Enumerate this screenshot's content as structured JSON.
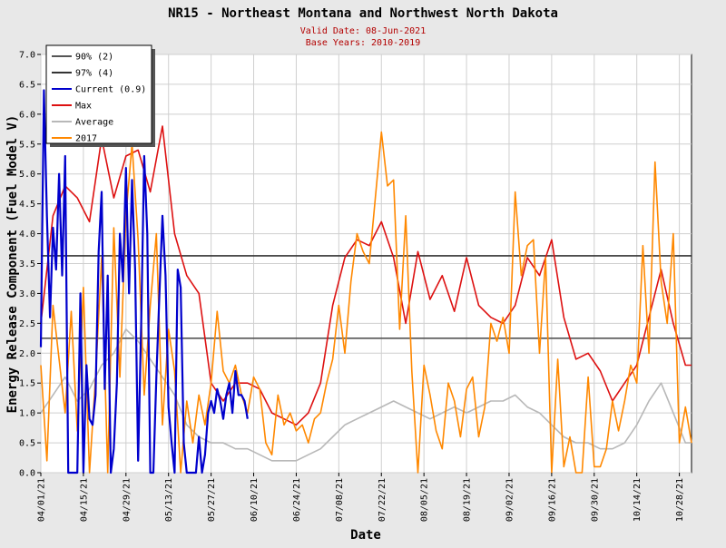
{
  "chart_data": {
    "type": "line",
    "title": "NR15 - Northeast Montana and Northwest North Dakota",
    "subtitle_valid": "Valid Date: 08-Jun-2021",
    "subtitle_base": "Base Years: 2010-2019",
    "xlabel": "Date",
    "ylabel": "Energy Release Component (Fuel Model V)",
    "ylim": [
      0,
      7
    ],
    "yticks": [
      "0.0",
      "0.5",
      "1.0",
      "1.5",
      "2.0",
      "2.5",
      "3.0",
      "3.5",
      "4.0",
      "4.5",
      "5.0",
      "5.5",
      "6.0",
      "6.5",
      "7.0"
    ],
    "x_start": "2021-04-01",
    "x_end": "2021-11-01",
    "xticks": [
      {
        "date": "2021-04-01",
        "label": "04/01/21"
      },
      {
        "date": "2021-04-15",
        "label": "04/15/21"
      },
      {
        "date": "2021-04-29",
        "label": "04/29/21"
      },
      {
        "date": "2021-05-13",
        "label": "05/13/21"
      },
      {
        "date": "2021-05-27",
        "label": "05/27/21"
      },
      {
        "date": "2021-06-10",
        "label": "06/10/21"
      },
      {
        "date": "2021-06-24",
        "label": "06/24/21"
      },
      {
        "date": "2021-07-08",
        "label": "07/08/21"
      },
      {
        "date": "2021-07-22",
        "label": "07/22/21"
      },
      {
        "date": "2021-08-05",
        "label": "08/05/21"
      },
      {
        "date": "2021-08-19",
        "label": "08/19/21"
      },
      {
        "date": "2021-09-02",
        "label": "09/02/21"
      },
      {
        "date": "2021-09-16",
        "label": "09/16/21"
      },
      {
        "date": "2021-09-30",
        "label": "09/30/21"
      },
      {
        "date": "2021-10-14",
        "label": "10/14/21"
      },
      {
        "date": "2021-10-28",
        "label": "10/28/21"
      }
    ],
    "grid": true,
    "legend_position": "top-left",
    "reference_lines": [
      {
        "name": "90% (2)",
        "value": 2.25,
        "color": "#555555"
      },
      {
        "name": "97% (4)",
        "value": 3.63,
        "color": "#333333"
      }
    ],
    "series": [
      {
        "name": "Current (0.9)",
        "color": "#0000cc",
        "x": [
          "2021-04-01",
          "2021-04-02",
          "2021-04-03",
          "2021-04-04",
          "2021-04-05",
          "2021-04-06",
          "2021-04-07",
          "2021-04-08",
          "2021-04-09",
          "2021-04-10",
          "2021-04-11",
          "2021-04-12",
          "2021-04-13",
          "2021-04-14",
          "2021-04-15",
          "2021-04-16",
          "2021-04-17",
          "2021-04-18",
          "2021-04-19",
          "2021-04-20",
          "2021-04-21",
          "2021-04-22",
          "2021-04-23",
          "2021-04-24",
          "2021-04-25",
          "2021-04-26",
          "2021-04-27",
          "2021-04-28",
          "2021-04-29",
          "2021-04-30",
          "2021-05-01",
          "2021-05-02",
          "2021-05-03",
          "2021-05-04",
          "2021-05-05",
          "2021-05-06",
          "2021-05-07",
          "2021-05-08",
          "2021-05-09",
          "2021-05-10",
          "2021-05-11",
          "2021-05-12",
          "2021-05-13",
          "2021-05-14",
          "2021-05-15",
          "2021-05-16",
          "2021-05-17",
          "2021-05-18",
          "2021-05-19",
          "2021-05-20",
          "2021-05-21",
          "2021-05-22",
          "2021-05-23",
          "2021-05-24",
          "2021-05-25",
          "2021-05-26",
          "2021-05-27",
          "2021-05-28",
          "2021-05-29",
          "2021-05-30",
          "2021-05-31",
          "2021-06-01",
          "2021-06-02",
          "2021-06-03",
          "2021-06-04",
          "2021-06-05",
          "2021-06-06",
          "2021-06-07",
          "2021-06-08"
        ],
        "values": [
          2.1,
          6.4,
          4.3,
          2.6,
          4.1,
          3.4,
          5.0,
          3.3,
          5.3,
          0.0,
          0.0,
          0.0,
          0.0,
          3.0,
          0.0,
          1.8,
          0.9,
          0.8,
          1.3,
          3.7,
          4.7,
          1.4,
          3.3,
          0.0,
          0.4,
          1.5,
          4.0,
          3.2,
          5.1,
          3.0,
          4.9,
          3.4,
          0.2,
          2.5,
          5.3,
          4.0,
          0.0,
          0.0,
          1.6,
          3.0,
          4.3,
          3.3,
          1.1,
          0.5,
          0.0,
          3.4,
          3.1,
          0.5,
          0.0,
          0.0,
          0.0,
          0.0,
          0.6,
          0.0,
          0.3,
          1.0,
          1.2,
          1.0,
          1.4,
          1.2,
          0.9,
          1.3,
          1.5,
          1.0,
          1.7,
          1.3,
          1.3,
          1.2,
          0.9
        ]
      },
      {
        "name": "Max",
        "color": "#dd1111",
        "x": [
          "2021-04-01",
          "2021-04-05",
          "2021-04-09",
          "2021-04-13",
          "2021-04-17",
          "2021-04-21",
          "2021-04-25",
          "2021-04-29",
          "2021-05-03",
          "2021-05-07",
          "2021-05-11",
          "2021-05-15",
          "2021-05-19",
          "2021-05-23",
          "2021-05-27",
          "2021-05-31",
          "2021-06-04",
          "2021-06-08",
          "2021-06-12",
          "2021-06-16",
          "2021-06-20",
          "2021-06-24",
          "2021-06-28",
          "2021-07-02",
          "2021-07-06",
          "2021-07-10",
          "2021-07-14",
          "2021-07-18",
          "2021-07-22",
          "2021-07-26",
          "2021-07-30",
          "2021-08-03",
          "2021-08-07",
          "2021-08-11",
          "2021-08-15",
          "2021-08-19",
          "2021-08-23",
          "2021-08-27",
          "2021-08-31",
          "2021-09-04",
          "2021-09-08",
          "2021-09-12",
          "2021-09-16",
          "2021-09-20",
          "2021-09-24",
          "2021-09-28",
          "2021-10-02",
          "2021-10-06",
          "2021-10-10",
          "2021-10-14",
          "2021-10-18",
          "2021-10-22",
          "2021-10-26",
          "2021-10-30",
          "2021-11-01"
        ],
        "values": [
          2.5,
          4.3,
          4.8,
          4.6,
          4.2,
          5.6,
          4.6,
          5.3,
          5.4,
          4.7,
          5.8,
          4.0,
          3.3,
          3.0,
          1.5,
          1.2,
          1.5,
          1.5,
          1.4,
          1.0,
          0.9,
          0.8,
          1.0,
          1.5,
          2.8,
          3.6,
          3.9,
          3.8,
          4.2,
          3.6,
          2.5,
          3.7,
          2.9,
          3.3,
          2.7,
          3.6,
          2.8,
          2.6,
          2.5,
          2.8,
          3.6,
          3.3,
          3.9,
          2.6,
          1.9,
          2.0,
          1.7,
          1.2,
          1.5,
          1.8,
          2.6,
          3.4,
          2.5,
          1.8,
          1.8
        ]
      },
      {
        "name": "Average",
        "color": "#b8b8b8",
        "x": [
          "2021-04-01",
          "2021-04-05",
          "2021-04-09",
          "2021-04-13",
          "2021-04-17",
          "2021-04-21",
          "2021-04-25",
          "2021-04-29",
          "2021-05-03",
          "2021-05-07",
          "2021-05-11",
          "2021-05-15",
          "2021-05-19",
          "2021-05-23",
          "2021-05-27",
          "2021-05-31",
          "2021-06-04",
          "2021-06-08",
          "2021-06-12",
          "2021-06-16",
          "2021-06-20",
          "2021-06-24",
          "2021-06-28",
          "2021-07-02",
          "2021-07-06",
          "2021-07-10",
          "2021-07-14",
          "2021-07-18",
          "2021-07-22",
          "2021-07-26",
          "2021-07-30",
          "2021-08-03",
          "2021-08-07",
          "2021-08-11",
          "2021-08-15",
          "2021-08-19",
          "2021-08-23",
          "2021-08-27",
          "2021-08-31",
          "2021-09-04",
          "2021-09-08",
          "2021-09-12",
          "2021-09-16",
          "2021-09-20",
          "2021-09-24",
          "2021-09-28",
          "2021-10-02",
          "2021-10-06",
          "2021-10-10",
          "2021-10-14",
          "2021-10-18",
          "2021-10-22",
          "2021-10-26",
          "2021-10-30",
          "2021-11-01"
        ],
        "values": [
          1.0,
          1.3,
          1.6,
          1.2,
          1.4,
          1.8,
          2.0,
          2.4,
          2.2,
          1.9,
          1.6,
          1.3,
          0.8,
          0.6,
          0.5,
          0.5,
          0.4,
          0.4,
          0.3,
          0.2,
          0.2,
          0.2,
          0.3,
          0.4,
          0.6,
          0.8,
          0.9,
          1.0,
          1.1,
          1.2,
          1.1,
          1.0,
          0.9,
          1.0,
          1.1,
          1.0,
          1.1,
          1.2,
          1.2,
          1.3,
          1.1,
          1.0,
          0.8,
          0.6,
          0.5,
          0.5,
          0.4,
          0.4,
          0.5,
          0.8,
          1.2,
          1.5,
          1.0,
          0.5,
          0.5
        ]
      },
      {
        "name": "2017",
        "color": "#ff8800",
        "x": [
          "2021-04-01",
          "2021-04-03",
          "2021-04-05",
          "2021-04-07",
          "2021-04-09",
          "2021-04-11",
          "2021-04-13",
          "2021-04-15",
          "2021-04-17",
          "2021-04-19",
          "2021-04-21",
          "2021-04-23",
          "2021-04-25",
          "2021-04-27",
          "2021-04-29",
          "2021-05-01",
          "2021-05-03",
          "2021-05-05",
          "2021-05-07",
          "2021-05-09",
          "2021-05-11",
          "2021-05-13",
          "2021-05-15",
          "2021-05-17",
          "2021-05-19",
          "2021-05-21",
          "2021-05-23",
          "2021-05-25",
          "2021-05-27",
          "2021-05-29",
          "2021-05-31",
          "2021-06-02",
          "2021-06-04",
          "2021-06-06",
          "2021-06-08",
          "2021-06-10",
          "2021-06-12",
          "2021-06-14",
          "2021-06-16",
          "2021-06-18",
          "2021-06-20",
          "2021-06-22",
          "2021-06-24",
          "2021-06-26",
          "2021-06-28",
          "2021-06-30",
          "2021-07-02",
          "2021-07-04",
          "2021-07-06",
          "2021-07-08",
          "2021-07-10",
          "2021-07-12",
          "2021-07-14",
          "2021-07-16",
          "2021-07-18",
          "2021-07-20",
          "2021-07-22",
          "2021-07-24",
          "2021-07-26",
          "2021-07-28",
          "2021-07-30",
          "2021-08-01",
          "2021-08-03",
          "2021-08-05",
          "2021-08-07",
          "2021-08-09",
          "2021-08-11",
          "2021-08-13",
          "2021-08-15",
          "2021-08-17",
          "2021-08-19",
          "2021-08-21",
          "2021-08-23",
          "2021-08-25",
          "2021-08-27",
          "2021-08-29",
          "2021-08-31",
          "2021-09-02",
          "2021-09-04",
          "2021-09-06",
          "2021-09-08",
          "2021-09-10",
          "2021-09-12",
          "2021-09-14",
          "2021-09-16",
          "2021-09-18",
          "2021-09-20",
          "2021-09-22",
          "2021-09-24",
          "2021-09-26",
          "2021-09-28",
          "2021-09-30",
          "2021-10-02",
          "2021-10-04",
          "2021-10-06",
          "2021-10-08",
          "2021-10-10",
          "2021-10-12",
          "2021-10-14",
          "2021-10-16",
          "2021-10-18",
          "2021-10-20",
          "2021-10-22",
          "2021-10-24",
          "2021-10-26",
          "2021-10-28",
          "2021-10-30",
          "2021-11-01"
        ],
        "values": [
          1.8,
          0.2,
          2.8,
          1.9,
          1.0,
          2.7,
          0.7,
          3.1,
          0.0,
          1.6,
          3.6,
          0.0,
          4.1,
          1.6,
          4.3,
          5.5,
          3.9,
          1.3,
          2.8,
          4.0,
          0.8,
          2.4,
          1.7,
          0.0,
          1.2,
          0.5,
          1.3,
          0.8,
          1.5,
          2.7,
          1.7,
          1.5,
          1.8,
          1.3,
          1.0,
          1.6,
          1.4,
          0.5,
          0.3,
          1.3,
          0.8,
          1.0,
          0.7,
          0.8,
          0.5,
          0.9,
          1.0,
          1.5,
          1.9,
          2.8,
          2.0,
          3.2,
          4.0,
          3.7,
          3.5,
          4.6,
          5.7,
          4.8,
          4.9,
          2.4,
          4.3,
          1.7,
          0.0,
          1.8,
          1.3,
          0.7,
          0.4,
          1.5,
          1.2,
          0.6,
          1.4,
          1.6,
          0.6,
          1.1,
          2.5,
          2.2,
          2.6,
          2.0,
          4.7,
          3.3,
          3.8,
          3.9,
          2.0,
          3.6,
          0.0,
          1.9,
          0.1,
          0.6,
          0.0,
          0.0,
          1.6,
          0.1,
          0.1,
          0.4,
          1.2,
          0.7,
          1.2,
          1.8,
          1.5,
          3.8,
          2.0,
          5.2,
          3.2,
          2.5,
          4.0,
          0.5,
          1.1,
          0.5
        ]
      }
    ]
  }
}
